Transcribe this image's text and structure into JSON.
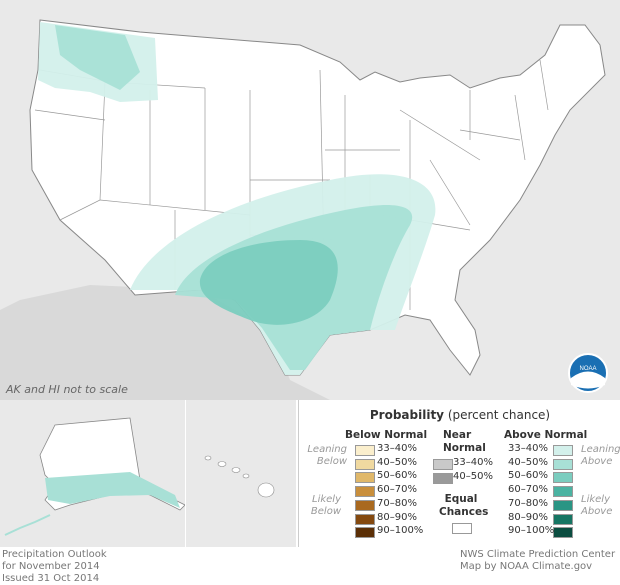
{
  "note": "AK and HI not to scale",
  "legend": {
    "title_bold": "Probability",
    "title_rest": " (percent chance)",
    "below_normal": {
      "heading": "Below Normal",
      "leaning": [
        "Leaning",
        "Below"
      ],
      "likely": [
        "Likely",
        "Below"
      ],
      "bins": [
        "33–40%",
        "40–50%",
        "50–60%",
        "60–70%",
        "70–80%",
        "80–90%",
        "90–100%"
      ],
      "colors": [
        "#fbefcd",
        "#f0d9a0",
        "#e0b86a",
        "#c98f3c",
        "#a9691f",
        "#84490f",
        "#5b2f06"
      ]
    },
    "near_normal": {
      "heading": [
        "Near",
        "Normal"
      ],
      "bins": [
        "33–40%",
        "40–50%"
      ],
      "colors": [
        "#c9c9c9",
        "#9a9a9a"
      ]
    },
    "equal_chances": {
      "label": [
        "Equal",
        "Chances"
      ],
      "color": "#ffffff"
    },
    "above_normal": {
      "heading": "Above Normal",
      "leaning": [
        "Leaning",
        "Above"
      ],
      "likely": [
        "Likely",
        "Above"
      ],
      "bins": [
        "33–40%",
        "40–50%",
        "50–60%",
        "60–70%",
        "70–80%",
        "80–90%",
        "90–100%"
      ],
      "colors": [
        "#d3f0eb",
        "#a8e0d6",
        "#7bcdbf",
        "#4bb3a2",
        "#2a9584",
        "#167563",
        "#0b4d40"
      ]
    }
  },
  "footer_left": [
    "Precipitation Outlook",
    "for November 2014",
    "Issued 31 Oct 2014"
  ],
  "footer_right": [
    "NWS Climate Prediction Center",
    "Map by NOAA Climate.gov"
  ],
  "logo_text": "NOAA",
  "colors": {
    "background": "#e9e9e9",
    "land": "#ffffff",
    "border": "#888888"
  }
}
